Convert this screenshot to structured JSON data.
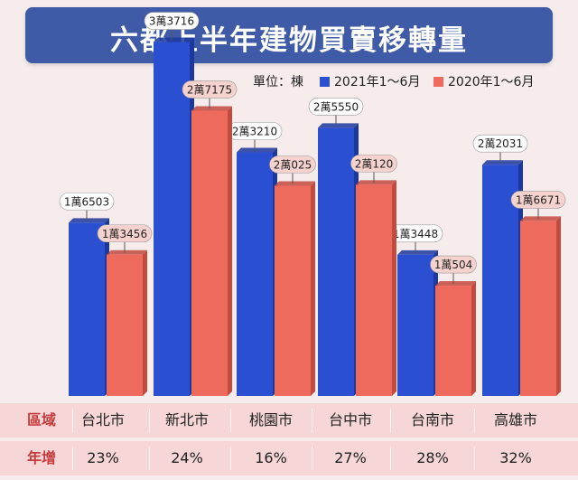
{
  "title": "六都上半年建物買賣移轉量",
  "legend": {
    "unit_label": "單位：棟",
    "series_2021": "2021年1～6月",
    "series_2020": "2020年1～6月"
  },
  "colors": {
    "series_2021": "#2a4fd1",
    "series_2021_dark": "#1c389e",
    "series_2020": "#ee6a5c",
    "series_2020_dark": "#c24a3f",
    "header_text": "#c63b3b"
  },
  "chart_data": {
    "type": "bar",
    "title": "六都上半年建物買賣移轉量",
    "unit": "棟",
    "categories": [
      "台北市",
      "新北市",
      "桃園市",
      "台中市",
      "台南市",
      "高雄市"
    ],
    "series": [
      {
        "name": "2021年1～6月",
        "values": [
          16503,
          33716,
          23210,
          25550,
          13448,
          22031
        ],
        "labels": [
          "1萬6503",
          "3萬3716",
          "2萬3210",
          "2萬5550",
          "1萬3448",
          "2萬2031"
        ]
      },
      {
        "name": "2020年1～6月",
        "values": [
          13456,
          27175,
          20025,
          20120,
          10504,
          16671
        ],
        "labels": [
          "1萬3456",
          "2萬7175",
          "2萬025",
          "2萬120",
          "1萬504",
          "1萬6671"
        ]
      }
    ],
    "ylim": [
      0,
      36000
    ]
  },
  "table": {
    "region_label": "區域",
    "growth_label": "年增",
    "regions": [
      "台北市",
      "新北市",
      "桃園市",
      "台中市",
      "台南市",
      "高雄市"
    ],
    "growth": [
      "23%",
      "24%",
      "16%",
      "27%",
      "28%",
      "32%"
    ]
  }
}
